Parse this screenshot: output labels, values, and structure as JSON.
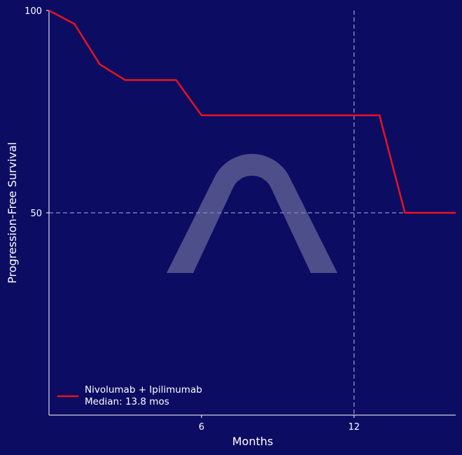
{
  "chart_data": {
    "type": "line",
    "xlabel": "Months",
    "ylabel": "Progression-Free Survival",
    "xlim": [
      0,
      16
    ],
    "ylim": [
      0,
      100
    ],
    "x_ticks": [
      6,
      12
    ],
    "y_ticks": [
      50,
      100
    ],
    "reference_lines": {
      "median_y": 50,
      "median_x": 12
    },
    "series": [
      {
        "name": "Nivolumab + Ipilimumab",
        "color": "#e8141c",
        "x": [
          0,
          1,
          2,
          3,
          4,
          5,
          6,
          7,
          8,
          9,
          10,
          11,
          12,
          13,
          14,
          15,
          16
        ],
        "y": [
          100,
          96.7,
          86.7,
          82.8,
          82.8,
          82.8,
          74.1,
          74.1,
          74.1,
          74.1,
          74.1,
          74.1,
          74.1,
          74.1,
          50,
          50,
          50
        ]
      }
    ],
    "legend": {
      "position": "bottom-left",
      "label": "Nivolumab + Ipilimumab",
      "sublabel": "Median: 13.8 mos"
    },
    "colors": {
      "background": "#0c0c63",
      "axis": "#ffffff",
      "reference": "#7a7ab8",
      "watermark": "#5a5a92"
    }
  }
}
